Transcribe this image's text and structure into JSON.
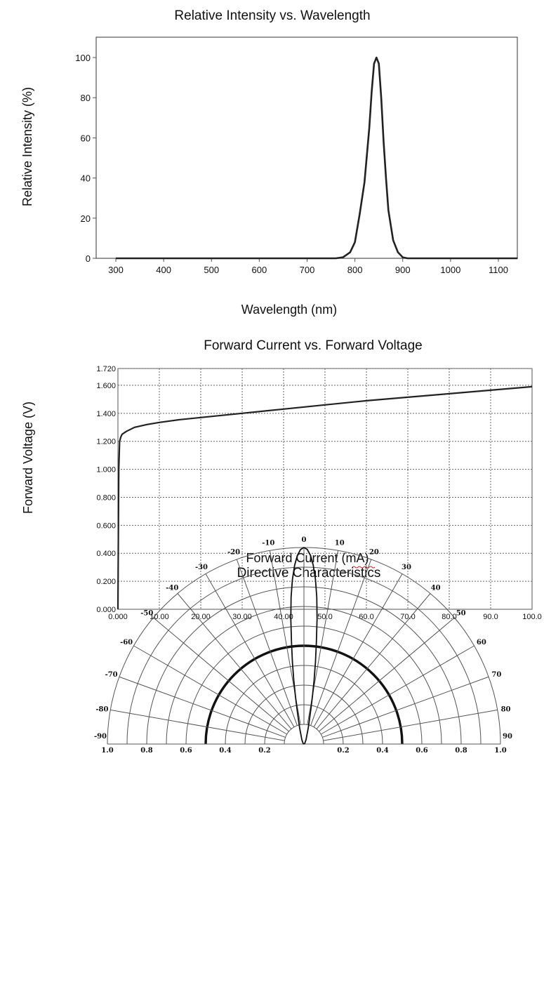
{
  "chart_data": [
    {
      "type": "line",
      "title": "Relative Intensity vs. Wavelength",
      "xlabel": "Wavelength (nm)",
      "ylabel": "Relative Intensity (%)",
      "xlim": [
        300,
        1140
      ],
      "ylim": [
        0,
        110
      ],
      "x_ticks": [
        300,
        400,
        500,
        600,
        700,
        800,
        900,
        1000,
        1100
      ],
      "y_ticks": [
        0,
        20,
        40,
        60,
        80,
        100
      ],
      "grid": false,
      "series": [
        {
          "x": [
            300,
            700,
            760,
            775,
            790,
            800,
            810,
            820,
            830,
            835,
            840,
            845,
            850,
            855,
            860,
            865,
            870,
            880,
            890,
            900,
            910,
            930,
            1140
          ],
          "y": [
            0,
            0,
            0,
            0.5,
            3,
            8,
            22,
            38,
            65,
            83,
            97,
            100,
            97,
            80,
            58,
            40,
            24,
            9,
            3,
            0.5,
            0,
            0,
            0
          ]
        }
      ]
    },
    {
      "type": "line",
      "title": "Forward Current vs. Forward Voltage",
      "xlabel": "Forward Current (mA)",
      "ylabel": "Forward Voltage (V)",
      "xlim": [
        0,
        100
      ],
      "ylim": [
        0,
        1.72
      ],
      "x_ticks": [
        "0.000",
        "10.00",
        "20.00",
        "30.00",
        "40.00",
        "50.0",
        "60.0",
        "70.0",
        "80.0",
        "90.0",
        "100.0"
      ],
      "x_tick_values": [
        0,
        10,
        20,
        30,
        40,
        50,
        60,
        70,
        80,
        90,
        100
      ],
      "y_ticks": [
        "0.000",
        "0.200",
        "0.400",
        "0.600",
        "0.800",
        "1.000",
        "1.200",
        "1.400",
        "1.600",
        "1.720"
      ],
      "y_tick_values": [
        0,
        0.2,
        0.4,
        0.6,
        0.8,
        1.0,
        1.2,
        1.4,
        1.6,
        1.72
      ],
      "grid": true,
      "series": [
        {
          "x": [
            0,
            0.2,
            0.4,
            0.7,
            1,
            2,
            4,
            7,
            10,
            15,
            20,
            30,
            40,
            50,
            60,
            70,
            80,
            90,
            100
          ],
          "y": [
            0,
            1.0,
            1.2,
            1.23,
            1.25,
            1.27,
            1.3,
            1.32,
            1.335,
            1.355,
            1.37,
            1.4,
            1.43,
            1.46,
            1.49,
            1.515,
            1.54,
            1.565,
            1.59
          ]
        }
      ]
    },
    {
      "type": "polar",
      "title": "Directive Characteristics",
      "angle_ticks": [
        "-90",
        "-80",
        "-70",
        "-60",
        "-50",
        "-40",
        "-30",
        "-20",
        "-10",
        "0",
        "10",
        "20",
        "30",
        "40",
        "50",
        "60",
        "70",
        "80",
        "90"
      ],
      "radial_ticks": [
        "1.0",
        "0.8",
        "0.6",
        "0.4",
        "0.2",
        "0.2",
        "0.4",
        "0.6",
        "0.8",
        "1.0"
      ],
      "rlim": [
        0,
        1.0
      ],
      "series": [
        {
          "description_angles_deg": [
            0,
            1,
            2,
            3,
            4,
            5,
            6,
            7,
            8,
            9,
            10,
            11,
            12,
            14,
            16,
            18,
            20,
            25,
            30,
            40,
            60,
            90
          ],
          "r": [
            1.0,
            0.99,
            0.96,
            0.91,
            0.84,
            0.75,
            0.64,
            0.52,
            0.42,
            0.33,
            0.25,
            0.19,
            0.15,
            0.1,
            0.07,
            0.05,
            0.04,
            0.025,
            0.015,
            0.008,
            0.004,
            0.0
          ]
        }
      ]
    }
  ]
}
